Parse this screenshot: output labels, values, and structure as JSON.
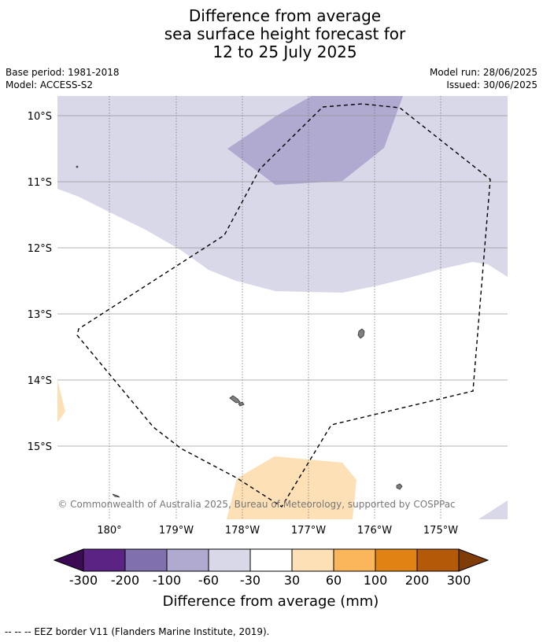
{
  "title": {
    "line1": "Difference from average",
    "line2": "sea surface height forecast for",
    "line3": "12 to 25 July 2025"
  },
  "meta": {
    "base_period": "Base period: 1981-2018",
    "model": "Model: ACCESS-S2",
    "model_run": "Model run: 28/06/2025",
    "issued": "Issued: 30/06/2025"
  },
  "map": {
    "lat_labels": [
      "10°S",
      "11°S",
      "12°S",
      "13°S",
      "14°S",
      "15°S"
    ],
    "lon_labels": [
      "180°",
      "179°W",
      "178°W",
      "177°W",
      "176°W",
      "175°W"
    ],
    "copyright": "© Commonwealth of Australia 2025, Bureau of Meteorology, supported by COSPPac",
    "colors": {
      "band_-100_-60": "#b0a9d0",
      "band_-60_-30": "#d8d8e9",
      "band_30_60": "#fde0b6",
      "land": "#7f7f7f",
      "eez_line": "#000000"
    }
  },
  "colorbar": {
    "label": "Difference from average (mm)",
    "ticks": [
      "-300",
      "-200",
      "-100",
      "-60",
      "-30",
      "30",
      "60",
      "100",
      "200",
      "300"
    ],
    "colors": [
      "#3c0a52",
      "#5a2384",
      "#8070ad",
      "#b0a9d0",
      "#d8d8e9",
      "#ffffff",
      "#fde0b6",
      "#fbb65c",
      "#e18314",
      "#b35907",
      "#7f3b08"
    ]
  },
  "footer": "--  --  -- EEZ border V11 (Flanders Marine Institute, 2019)."
}
